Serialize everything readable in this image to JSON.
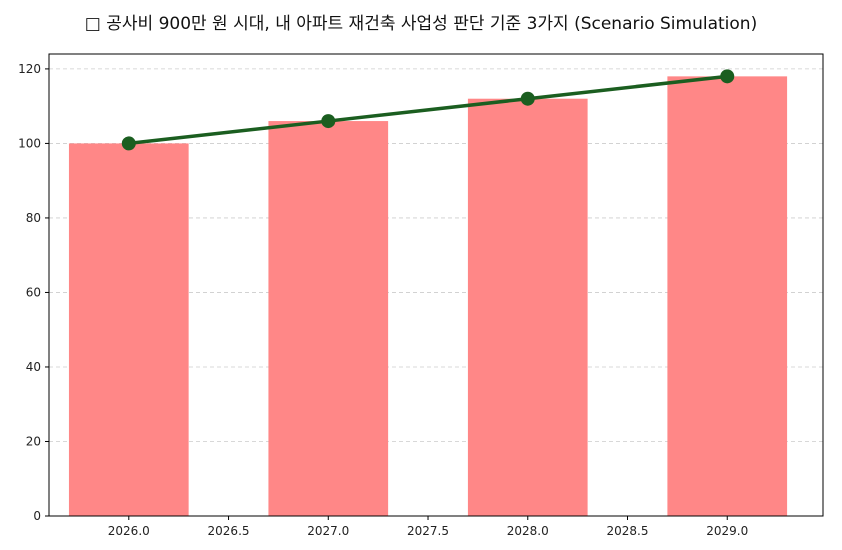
{
  "chart_data": {
    "type": "bar",
    "title": "□ 공사비 900만 원 시대, 내 아파트 재건축 사업성 판단 기준 3가지 (Scenario Simulation)",
    "xlabel": "",
    "ylabel": "",
    "x": [
      2026,
      2027,
      2028,
      2029
    ],
    "bar_values": [
      100,
      106,
      112,
      118
    ],
    "line_values": [
      100,
      106,
      112,
      118
    ],
    "xlim": [
      2025.6,
      2029.48
    ],
    "ylim": [
      0,
      124
    ],
    "x_ticks": [
      "2026.0",
      "2026.5",
      "2027.0",
      "2027.5",
      "2028.0",
      "2028.5",
      "2029.0"
    ],
    "y_ticks": [
      "0",
      "20",
      "40",
      "60",
      "80",
      "100",
      "120"
    ],
    "grid": true,
    "bar_color": "#ff8787",
    "line_color": "#1b5e20"
  }
}
